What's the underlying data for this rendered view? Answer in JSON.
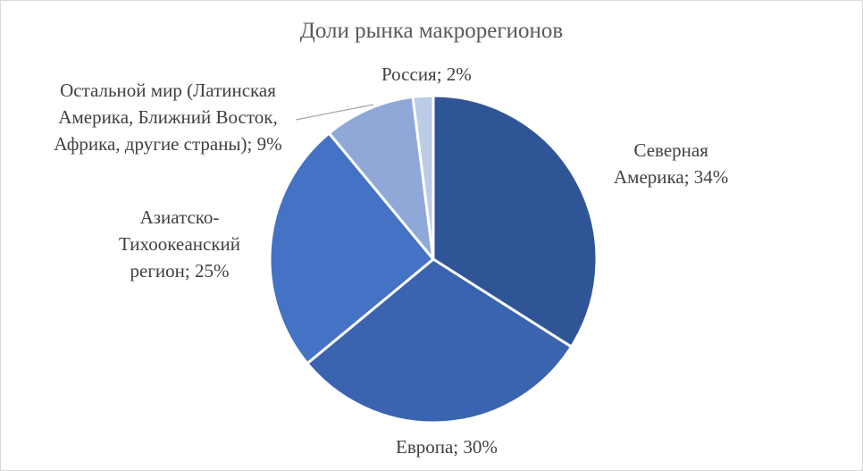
{
  "chart_data": {
    "type": "pie",
    "title": "Доли рынка макрорегионов",
    "categories": [
      "Северная Америка",
      "Европа",
      "Азиатско-Тихоокеанский регион",
      "Остальной мир (Латинская Америка, Ближний Восток, Африка, другие страны)",
      "Россия"
    ],
    "values": [
      34,
      30,
      25,
      9,
      2
    ],
    "unit": "%",
    "colors": [
      "#2f5597",
      "#3a64b0",
      "#4472c4",
      "#8fa8d8",
      "#bccbe6"
    ],
    "data_labels": {
      "north_america_1": "Северная",
      "north_america_2": "Америка; 34%",
      "europe": "Европа; 30%",
      "asia_pacific_1": "Азиатско-",
      "asia_pacific_2": "Тихоокеанский",
      "asia_pacific_3": "регион; 25%",
      "rest_1": "Остальной мир (Латинская",
      "rest_2": "Америка, Ближний Восток,",
      "rest_3": "Африка, другие страны); 9%",
      "russia": "Россия; 2%"
    }
  }
}
